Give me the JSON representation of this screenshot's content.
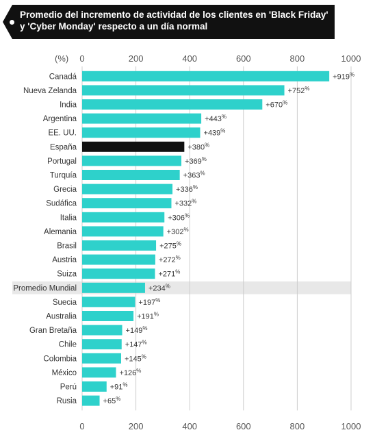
{
  "title": "Promedio del incremento de actividad de los clientes en 'Black Friday' y 'Cyber Monday' respecto a un día normal",
  "colors": {
    "bar": "#2ed1cb",
    "highlight": "#111111",
    "average_band": "#e8e8e8",
    "grid": "#cccccc",
    "title_bg": "#111111"
  },
  "chart_data": {
    "type": "bar",
    "orientation": "horizontal",
    "title": "Promedio del incremento de actividad de los clientes en 'Black Friday' y 'Cyber Monday' respecto a un día normal",
    "axis_unit": "(%)",
    "xlim": [
      0,
      1000
    ],
    "ticks": [
      0,
      200,
      400,
      600,
      800,
      1000
    ],
    "grid": true,
    "value_prefix": "+",
    "value_suffix": "%",
    "highlighted_category": "España",
    "average_category": "Promedio Mundial",
    "categories": [
      "Canadá",
      "Nueva Zelanda",
      "India",
      "Argentina",
      "EE. UU.",
      "España",
      "Portugal",
      "Turquía",
      "Grecia",
      "Sudáfica",
      "Italia",
      "Alemania",
      "Brasil",
      "Austria",
      "Suiza",
      "Promedio Mundial",
      "Suecia",
      "Australia",
      "Gran Bretaña",
      "Chile",
      "Colombia",
      "México",
      "Perú",
      "Rusia"
    ],
    "values": [
      919,
      752,
      670,
      443,
      439,
      380,
      369,
      363,
      336,
      332,
      306,
      302,
      275,
      272,
      271,
      234,
      197,
      191,
      149,
      147,
      145,
      126,
      91,
      65
    ]
  }
}
